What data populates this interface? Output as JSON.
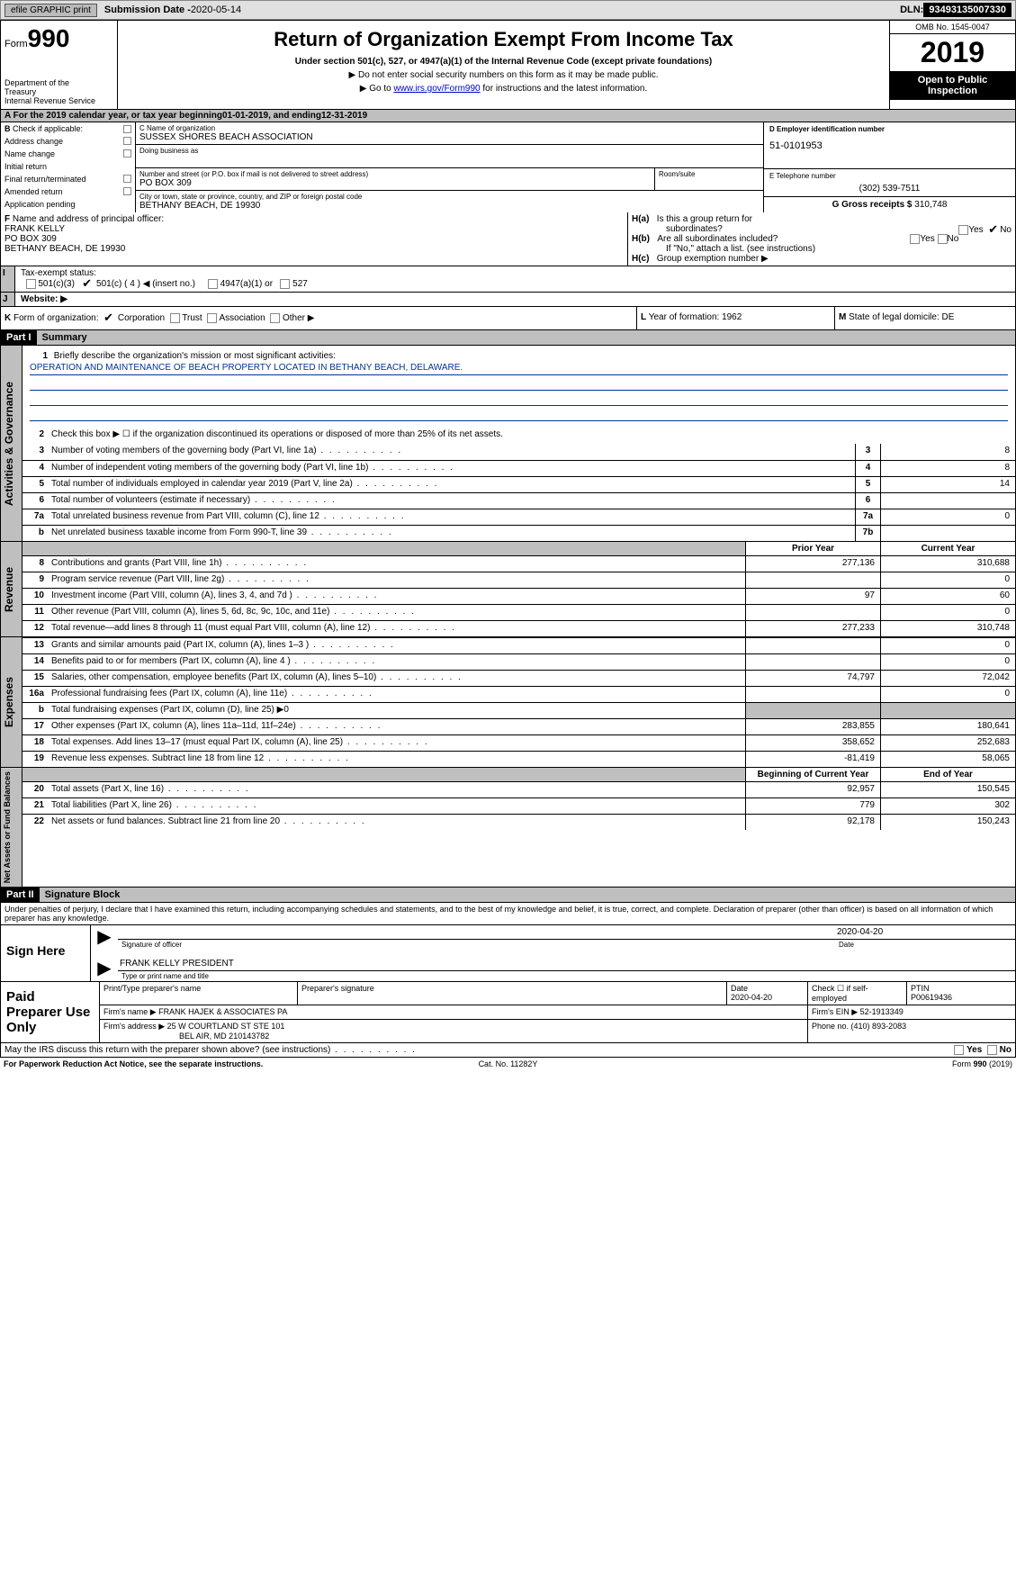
{
  "topbar": {
    "efile_btn": "efile GRAPHIC print",
    "sub_label": "Submission Date - ",
    "sub_date": "2020-05-14",
    "dln_label": "DLN: ",
    "dln": "93493135007330"
  },
  "header": {
    "form_label": "Form",
    "form_number": "990",
    "dept1": "Department of the",
    "dept2": "Treasury",
    "dept3": "Internal Revenue Service",
    "title": "Return of Organization Exempt From Income Tax",
    "sub1": "Under section 501(c), 527, or 4947(a)(1) of the Internal Revenue Code (except private foundations)",
    "sub2": "▶ Do not enter social security numbers on this form as it may be made public.",
    "sub3_pre": "▶ Go to ",
    "sub3_link": "www.irs.gov/Form990",
    "sub3_post": " for instructions and the latest information.",
    "omb": "OMB No. 1545-0047",
    "year": "2019",
    "open_public1": "Open to Public",
    "open_public2": "Inspection"
  },
  "rowA": {
    "pre": "A   For the 2019 calendar year, or tax year beginning ",
    "begin": "01-01-2019",
    "mid": "    , and ending ",
    "end": "12-31-2019"
  },
  "colB": {
    "label": "B",
    "check": "Check if applicable:",
    "opts": [
      "Address change",
      "Name change",
      "Initial return",
      "Final return/terminated",
      "Amended return",
      "Application pending"
    ]
  },
  "colC": {
    "name_label": "C Name of organization",
    "name": "SUSSEX SHORES BEACH ASSOCIATION",
    "dba_label": "Doing business as",
    "dba": "",
    "addr_label": "Number and street (or P.O. box if mail is not delivered to street address)",
    "addr": "PO BOX 309",
    "room_label": "Room/suite",
    "city_label": "City or town, state or province, country, and ZIP or foreign postal code",
    "city": "BETHANY BEACH, DE   19930"
  },
  "colD": {
    "ein_label": "D Employer identification number",
    "ein": "51-0101953",
    "tel_label": "E Telephone number",
    "tel": "(302) 539-7511",
    "gross_label": "G Gross receipts $ ",
    "gross": "310,748"
  },
  "rowF": {
    "label": "F",
    "text": "Name and address of principal officer:",
    "name": "FRANK KELLY",
    "addr": "PO BOX 309",
    "city": "BETHANY BEACH, DE   19930"
  },
  "rowH": {
    "ha": "H(a)",
    "ha_text": "Is this a group return for",
    "ha_text2": "subordinates?",
    "hb": "H(b)",
    "hb_text": "Are all subordinates included?",
    "hb_note": "If \"No,\" attach a list. (see instructions)",
    "hc": "H(c)",
    "hc_text": "Group exemption number ▶",
    "yes": "Yes",
    "no": "No"
  },
  "rowI": {
    "label": "I",
    "text": "Tax-exempt status:",
    "opt1": "501(c)(3)",
    "opt2_a": "501(c) ( 4 ) ",
    "opt2_b": "◀ (insert no.)",
    "opt3": "4947(a)(1) or",
    "opt4": "527"
  },
  "rowJ": {
    "label": "J",
    "text": "Website: ▶"
  },
  "rowK": {
    "label": "K",
    "text": "Form of organization:",
    "opts": [
      "Corporation",
      "Trust",
      "Association",
      "Other ▶"
    ]
  },
  "rowL": {
    "label": "L",
    "text": "Year of formation: ",
    "val": "1962"
  },
  "rowM": {
    "label": "M",
    "text": "State of legal domicile: ",
    "val": "DE"
  },
  "part1": {
    "label": "Part I",
    "title": "Summary"
  },
  "part2": {
    "label": "Part II",
    "title": "Signature Block"
  },
  "vtabs": {
    "ag": "Activities & Governance",
    "rev": "Revenue",
    "exp": "Expenses",
    "na": "Net Assets or\nFund Balances"
  },
  "line1": {
    "num": "1",
    "text": "Briefly describe the organization's mission or most significant activities:",
    "mission": "OPERATION AND MAINTENANCE OF BEACH PROPERTY LOCATED IN BETHANY BEACH, DELAWARE."
  },
  "line2": {
    "num": "2",
    "text": "Check this box ▶ ☐ if the organization discontinued its operations or disposed of more than 25% of its net assets."
  },
  "lines": [
    {
      "num": "3",
      "text": "Number of voting members of the governing body (Part VI, line 1a)",
      "box": "3",
      "cy": "8"
    },
    {
      "num": "4",
      "text": "Number of independent voting members of the governing body (Part VI, line 1b)",
      "box": "4",
      "cy": "8"
    },
    {
      "num": "5",
      "text": "Total number of individuals employed in calendar year 2019 (Part V, line 2a)",
      "box": "5",
      "cy": "14"
    },
    {
      "num": "6",
      "text": "Total number of volunteers (estimate if necessary)",
      "box": "6",
      "cy": ""
    },
    {
      "num": "7a",
      "text": "Total unrelated business revenue from Part VIII, column (C), line 12",
      "box": "7a",
      "cy": "0"
    },
    {
      "num": "b",
      "text": "Net unrelated business taxable income from Form 990-T, line 39",
      "box": "7b",
      "cy": ""
    }
  ],
  "col_headers": {
    "py": "Prior Year",
    "cy": "Current Year",
    "boy": "Beginning of Current Year",
    "eoy": "End of Year"
  },
  "rev_lines": [
    {
      "num": "8",
      "text": "Contributions and grants (Part VIII, line 1h)",
      "py": "277,136",
      "cy": "310,688"
    },
    {
      "num": "9",
      "text": "Program service revenue (Part VIII, line 2g)",
      "py": "",
      "cy": "0"
    },
    {
      "num": "10",
      "text": "Investment income (Part VIII, column (A), lines 3, 4, and 7d )",
      "py": "97",
      "cy": "60"
    },
    {
      "num": "11",
      "text": "Other revenue (Part VIII, column (A), lines 5, 6d, 8c, 9c, 10c, and 11e)",
      "py": "",
      "cy": "0"
    },
    {
      "num": "12",
      "text": "Total revenue—add lines 8 through 11 (must equal Part VIII, column (A), line 12)",
      "py": "277,233",
      "cy": "310,748"
    }
  ],
  "exp_lines": [
    {
      "num": "13",
      "text": "Grants and similar amounts paid (Part IX, column (A), lines 1–3 )",
      "py": "",
      "cy": "0"
    },
    {
      "num": "14",
      "text": "Benefits paid to or for members (Part IX, column (A), line 4 )",
      "py": "",
      "cy": "0"
    },
    {
      "num": "15",
      "text": "Salaries, other compensation, employee benefits (Part IX, column (A), lines 5–10)",
      "py": "74,797",
      "cy": "72,042"
    },
    {
      "num": "16a",
      "text": "Professional fundraising fees (Part IX, column (A), line 11e)",
      "py": "",
      "cy": "0"
    },
    {
      "num": "b",
      "text": "Total fundraising expenses (Part IX, column (D), line 25) ▶0",
      "py": "SHADE",
      "cy": "SHADE"
    },
    {
      "num": "17",
      "text": "Other expenses (Part IX, column (A), lines 11a–11d, 11f–24e)",
      "py": "283,855",
      "cy": "180,641"
    },
    {
      "num": "18",
      "text": "Total expenses. Add lines 13–17 (must equal Part IX, column (A), line 25)",
      "py": "358,652",
      "cy": "252,683"
    },
    {
      "num": "19",
      "text": "Revenue less expenses. Subtract line 18 from line 12",
      "py": "-81,419",
      "cy": "58,065"
    }
  ],
  "na_lines": [
    {
      "num": "20",
      "text": "Total assets (Part X, line 16)",
      "py": "92,957",
      "cy": "150,545"
    },
    {
      "num": "21",
      "text": "Total liabilities (Part X, line 26)",
      "py": "779",
      "cy": "302"
    },
    {
      "num": "22",
      "text": "Net assets or fund balances. Subtract line 21 from line 20",
      "py": "92,178",
      "cy": "150,243"
    }
  ],
  "perjury": "Under penalties of perjury, I declare that I have examined this return, including accompanying schedules and statements, and to the best of my knowledge and belief, it is true, correct, and complete. Declaration of preparer (other than officer) is based on all information of which preparer has any knowledge.",
  "sign": {
    "label": "Sign Here",
    "sig_cap": "Signature of officer",
    "date": "2020-04-20",
    "date_cap": "Date",
    "name": "FRANK KELLY  PRESIDENT",
    "name_cap": "Type or print name and title"
  },
  "preparer": {
    "label": "Paid Preparer Use Only",
    "h1": "Print/Type preparer's name",
    "h2": "Preparer's signature",
    "h3": "Date",
    "date": "2020-04-20",
    "h4": "Check ☐ if self-employed",
    "h5": "PTIN",
    "ptin": "P00619436",
    "firm_name_l": "Firm's name    ▶",
    "firm_name": "FRANK HAJEK & ASSOCIATES PA",
    "ein_l": "Firm's EIN ▶",
    "ein": "52-1913349",
    "addr_l": "Firm's address ▶",
    "addr1": "25 W COURTLAND ST STE 101",
    "addr2": "BEL AIR, MD   210143782",
    "phone_l": "Phone no. ",
    "phone": "(410) 893-2083"
  },
  "footer_q": {
    "text": "May the IRS discuss this return with the preparer shown above? (see instructions)",
    "yes": "Yes",
    "no": "No"
  },
  "bottom": {
    "l": "For Paperwork Reduction Act Notice, see the separate instructions.",
    "c": "Cat. No. 11282Y",
    "r": "Form 990 (2019)"
  }
}
